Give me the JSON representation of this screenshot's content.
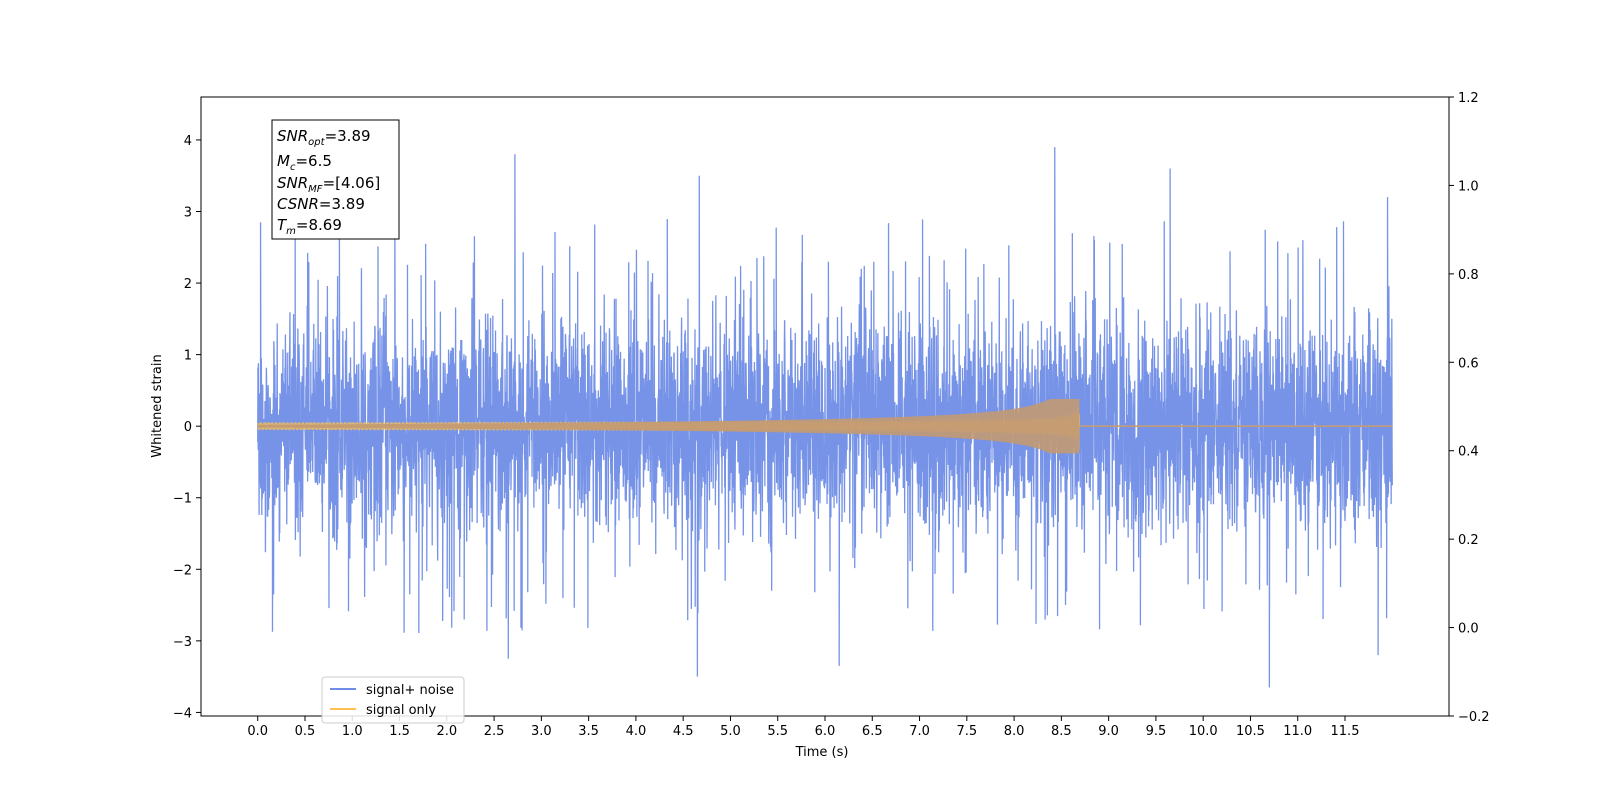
{
  "chart_data": {
    "type": "line",
    "xlabel": "Time (s)",
    "ylabel": "Whitened strain",
    "xlim": [
      -0.6,
      12.6
    ],
    "ylim": [
      -4.05,
      4.6
    ],
    "ylim_right": [
      -0.2,
      1.2
    ],
    "x_ticks": [
      "0.0",
      "0.5",
      "1.0",
      "1.5",
      "2.0",
      "2.5",
      "3.0",
      "3.5",
      "4.0",
      "4.5",
      "5.0",
      "5.5",
      "6.0",
      "6.5",
      "7.0",
      "7.5",
      "8.0",
      "8.5",
      "9.0",
      "9.5",
      "10.0",
      "10.5",
      "11.0",
      "11.5"
    ],
    "y_ticks": [
      "−4",
      "−3",
      "−2",
      "−1",
      "0",
      "1",
      "2",
      "3",
      "4"
    ],
    "y_ticks_right": [
      "−0.2",
      "0.0",
      "0.2",
      "0.4",
      "0.6",
      "0.8",
      "1.0",
      "1.2"
    ],
    "x_range": [
      0.0,
      12.0
    ],
    "series": [
      {
        "name": "signal+ noise",
        "color": "#6f8de6",
        "description": "whitened noise plus signal, amplitude mostly within ±2, spikes to about 3.8 / -3.6",
        "peaks": [
          {
            "x": 0.03,
            "y": 2.85
          },
          {
            "x": 1.45,
            "y": 3.4
          },
          {
            "x": 2.72,
            "y": 3.8
          },
          {
            "x": 4.67,
            "y": 3.5
          },
          {
            "x": 8.43,
            "y": 3.9
          },
          {
            "x": 9.65,
            "y": 3.6
          },
          {
            "x": 11.95,
            "y": 3.2
          },
          {
            "x": 2.65,
            "y": -3.25
          },
          {
            "x": 4.65,
            "y": -3.5
          },
          {
            "x": 6.15,
            "y": -3.35
          },
          {
            "x": 10.7,
            "y": -3.65
          },
          {
            "x": 11.85,
            "y": -3.2
          }
        ]
      },
      {
        "name": "signal only",
        "color": "#ffc04d",
        "description": "chirp waveform growing in amplitude until merger at Tm, then zero",
        "merger_time": 8.69,
        "peak_amplitude": 0.38
      }
    ],
    "annotation": {
      "snr_opt": "=3.89",
      "mc": "=6.5",
      "snr_mf": "=[4.06]",
      "csnr": "=3.89",
      "tm": "=8.69"
    },
    "legend": {
      "placement": "lower-left",
      "entries": [
        "signal+ noise",
        "signal only"
      ]
    }
  }
}
